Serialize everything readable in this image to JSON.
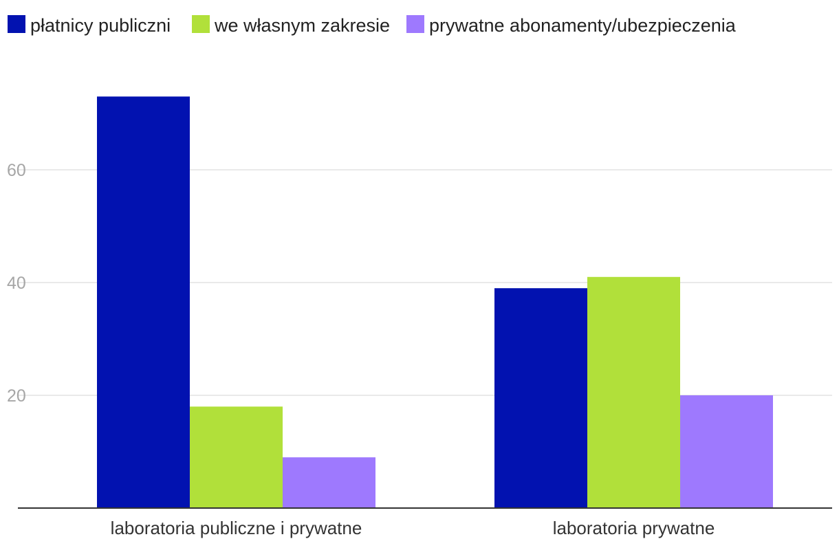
{
  "chart_data": {
    "type": "bar",
    "categories": [
      "laboratoria publiczne i prywatne",
      "laboratoria prywatne"
    ],
    "series": [
      {
        "name": "płatnicy publiczni",
        "values": [
          73,
          39
        ],
        "color": "#0212b0"
      },
      {
        "name": "we własnym zakresie",
        "values": [
          18,
          41
        ],
        "color": "#b1e03a"
      },
      {
        "name": "prywatne abonamenty/ubezpieczenia",
        "values": [
          9,
          20
        ],
        "color": "#9e79fe"
      }
    ],
    "y_ticks": [
      "20",
      "40",
      "60"
    ],
    "ylim": [
      0,
      80
    ],
    "grid": true,
    "legend_position": "top-left",
    "title": "",
    "xlabel": "",
    "ylabel": ""
  }
}
